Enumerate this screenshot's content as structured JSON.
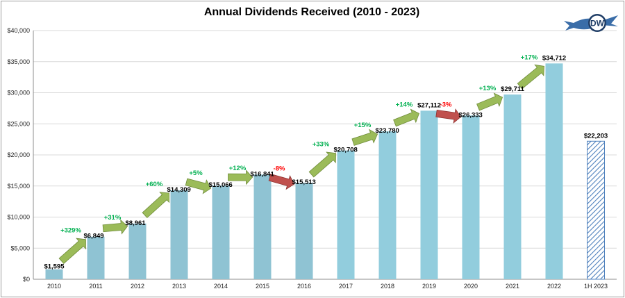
{
  "chart_data": {
    "type": "bar",
    "title": "Annual Dividends Received (2010 - 2023)",
    "categories": [
      "2010",
      "2011",
      "2012",
      "2013",
      "2014",
      "2015",
      "2016",
      "2017",
      "2018",
      "2019",
      "2020",
      "2021",
      "2022",
      "1H 2023"
    ],
    "values": [
      1595,
      6849,
      8961,
      14309,
      15066,
      16841,
      15513,
      20708,
      23780,
      27112,
      26333,
      29711,
      34712,
      22203
    ],
    "value_labels": [
      "$1,595",
      "$6,849",
      "$8,961",
      "$14,309",
      "$15,066",
      "$16,841",
      "$15,513",
      "$20,708",
      "$23,780",
      "$27,112",
      "$26,333",
      "$29,711",
      "$34,712",
      "$22,203"
    ],
    "growth_labels": [
      "+329%",
      "+31%",
      "+60%",
      "+5%",
      "+12%",
      "-8%",
      "+33%",
      "+15%",
      "+14%",
      "-3%",
      "+13%",
      "+17%"
    ],
    "ylim": [
      0,
      40000
    ],
    "yticks": [
      0,
      5000,
      10000,
      15000,
      20000,
      25000,
      30000,
      35000,
      40000
    ],
    "ytick_labels": [
      "$0",
      "$5,000",
      "$10,000",
      "$15,000",
      "$20,000",
      "$25,000",
      "$30,000",
      "$35,000",
      "$40,000"
    ],
    "grid": true,
    "legend": "none",
    "colors": {
      "bar_early": "#8fc3d3",
      "bar_late": "#92cddd",
      "partial_year_hatch": "#4f81bd",
      "up_arrow": "#9bbb59",
      "down_arrow": "#c0504d",
      "up_text": "#00b050",
      "down_text": "#ff0000"
    }
  },
  "logo": {
    "text": "DW"
  }
}
